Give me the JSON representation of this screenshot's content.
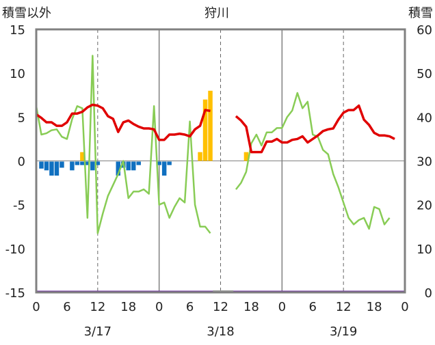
{
  "chart_data": {
    "type": "bar+line",
    "title": "狩川",
    "left_axis_label": "積雪以外",
    "right_axis_label": "積雪",
    "left_ylim": [
      -15,
      15
    ],
    "left_yticks": [
      "15",
      "10",
      "5",
      "0",
      "-5",
      "-10",
      "-15"
    ],
    "right_ylim": [
      0,
      60
    ],
    "right_yticks": [
      "60",
      "50",
      "40",
      "30",
      "20",
      "10",
      "0"
    ],
    "x_range_hours": [
      0,
      72
    ],
    "x_ticks": [
      {
        "h": 0,
        "label": "0"
      },
      {
        "h": 6,
        "label": "6"
      },
      {
        "h": 12,
        "label": "12"
      },
      {
        "h": 18,
        "label": "18"
      },
      {
        "h": 24,
        "label": "0"
      },
      {
        "h": 30,
        "label": "6"
      },
      {
        "h": 36,
        "label": "12"
      },
      {
        "h": 42,
        "label": "18"
      },
      {
        "h": 48,
        "label": "0"
      },
      {
        "h": 54,
        "label": "6"
      },
      {
        "h": 60,
        "label": "12"
      },
      {
        "h": 66,
        "label": "18"
      },
      {
        "h": 72,
        "label": "0"
      }
    ],
    "date_labels": [
      {
        "h": 12,
        "label": "3/17"
      },
      {
        "h": 36,
        "label": "3/18"
      },
      {
        "h": 60,
        "label": "3/19"
      }
    ],
    "colors": {
      "temperature": "#e00000",
      "snow_depth": "#88cc55",
      "precipitation": "#ffc000",
      "sunshine_negative": "#1070c0",
      "baseline": "#7030a0",
      "frame": "#808080"
    },
    "temperature": [
      [
        0,
        5.3
      ],
      [
        1,
        4.9
      ],
      [
        2,
        4.4
      ],
      [
        3,
        4.4
      ],
      [
        4,
        4.0
      ],
      [
        5,
        4.0
      ],
      [
        6,
        4.4
      ],
      [
        7,
        5.4
      ],
      [
        8,
        5.4
      ],
      [
        9,
        5.6
      ],
      [
        10,
        6.1
      ],
      [
        11,
        6.4
      ],
      [
        12,
        6.3
      ],
      [
        13,
        6.0
      ],
      [
        14,
        5.1
      ],
      [
        15,
        4.8
      ],
      [
        16,
        3.3
      ],
      [
        17,
        4.4
      ],
      [
        18,
        4.6
      ],
      [
        19,
        4.2
      ],
      [
        20,
        3.9
      ],
      [
        21,
        3.7
      ],
      [
        22,
        3.7
      ],
      [
        23,
        3.6
      ],
      [
        24,
        2.4
      ],
      [
        25,
        2.4
      ],
      [
        26,
        3.0
      ],
      [
        27,
        3.0
      ],
      [
        28,
        3.1
      ],
      [
        29,
        3.0
      ],
      [
        30,
        2.8
      ],
      [
        31,
        3.6
      ],
      [
        32,
        4.0
      ],
      [
        33,
        5.8
      ],
      [
        34,
        5.7
      ],
      [
        39,
        5.1
      ],
      [
        40,
        4.6
      ],
      [
        41,
        3.9
      ],
      [
        42,
        1.0
      ],
      [
        43,
        1.0
      ],
      [
        44,
        1.0
      ],
      [
        45,
        2.2
      ],
      [
        46,
        2.2
      ],
      [
        47,
        2.5
      ],
      [
        48,
        2.1
      ],
      [
        49,
        2.1
      ],
      [
        50,
        2.4
      ],
      [
        51,
        2.5
      ],
      [
        52,
        2.8
      ],
      [
        53,
        2.1
      ],
      [
        54,
        2.5
      ],
      [
        55,
        2.9
      ],
      [
        56,
        3.4
      ],
      [
        57,
        3.6
      ],
      [
        58,
        3.7
      ],
      [
        59,
        4.7
      ],
      [
        60,
        5.5
      ],
      [
        61,
        5.8
      ],
      [
        62,
        5.8
      ],
      [
        63,
        6.3
      ],
      [
        64,
        4.7
      ],
      [
        65,
        4.1
      ],
      [
        66,
        3.2
      ],
      [
        67,
        2.9
      ],
      [
        68,
        2.9
      ],
      [
        69,
        2.8
      ],
      [
        70,
        2.5
      ]
    ],
    "snow_depth": [
      [
        0,
        42.5
      ],
      [
        1,
        36
      ],
      [
        2,
        36.3
      ],
      [
        3,
        37
      ],
      [
        4,
        37.2
      ],
      [
        5,
        35.5
      ],
      [
        6,
        35
      ],
      [
        7,
        39.5
      ],
      [
        8,
        42.5
      ],
      [
        9,
        42
      ],
      [
        10,
        17
      ],
      [
        11,
        54
      ],
      [
        12,
        13.5
      ],
      [
        13,
        18
      ],
      [
        14,
        22
      ],
      [
        15,
        24.5
      ],
      [
        16,
        27
      ],
      [
        17,
        30
      ],
      [
        18,
        21.5
      ],
      [
        19,
        23
      ],
      [
        20,
        23
      ],
      [
        21,
        23.5
      ],
      [
        22,
        22.5
      ],
      [
        23,
        42.5
      ],
      [
        24,
        20
      ],
      [
        25,
        20.5
      ],
      [
        26,
        17
      ],
      [
        27,
        19.5
      ],
      [
        28,
        21.5
      ],
      [
        29,
        20.5
      ],
      [
        30,
        39
      ],
      [
        31,
        20
      ],
      [
        32,
        15
      ],
      [
        33,
        15
      ],
      [
        34,
        13.5
      ],
      [
        39,
        23.5
      ],
      [
        40,
        25
      ],
      [
        41,
        27.5
      ],
      [
        42,
        34
      ],
      [
        43,
        36
      ],
      [
        44,
        33.5
      ],
      [
        45,
        36.5
      ],
      [
        46,
        36.5
      ],
      [
        47,
        37.5
      ],
      [
        48,
        37.5
      ],
      [
        49,
        40
      ],
      [
        50,
        41.5
      ],
      [
        51,
        45.5
      ],
      [
        52,
        42
      ],
      [
        53,
        43.5
      ],
      [
        54,
        36
      ],
      [
        55,
        35.5
      ],
      [
        56,
        32.5
      ],
      [
        57,
        31.5
      ],
      [
        58,
        27
      ],
      [
        59,
        24
      ],
      [
        60,
        20.5
      ],
      [
        61,
        17
      ],
      [
        62,
        15.5
      ],
      [
        63,
        16.5
      ],
      [
        64,
        17
      ],
      [
        65,
        14.5
      ],
      [
        66,
        19.5
      ],
      [
        67,
        19
      ],
      [
        68,
        15.5
      ],
      [
        69,
        17
      ]
    ],
    "precip_bars": [
      [
        9,
        1.0
      ],
      [
        32,
        1.0
      ],
      [
        33,
        7.0
      ],
      [
        34,
        8.0
      ],
      [
        41,
        1.0
      ]
    ],
    "negative_bars": [
      [
        1,
        -0.8
      ],
      [
        2,
        -1.0
      ],
      [
        3,
        -1.6
      ],
      [
        4,
        -1.6
      ],
      [
        5,
        -0.7
      ],
      [
        7,
        -1.0
      ],
      [
        8,
        -0.4
      ],
      [
        9,
        -0.4
      ],
      [
        10,
        -0.4
      ],
      [
        11,
        -1.0
      ],
      [
        12,
        -0.4
      ],
      [
        16,
        -1.6
      ],
      [
        17,
        -0.7
      ],
      [
        18,
        -1.0
      ],
      [
        19,
        -1.0
      ],
      [
        20,
        -0.4
      ],
      [
        24,
        -0.4
      ],
      [
        25,
        -1.6
      ],
      [
        26,
        -0.4
      ]
    ],
    "grid": "dashed-vertical"
  }
}
